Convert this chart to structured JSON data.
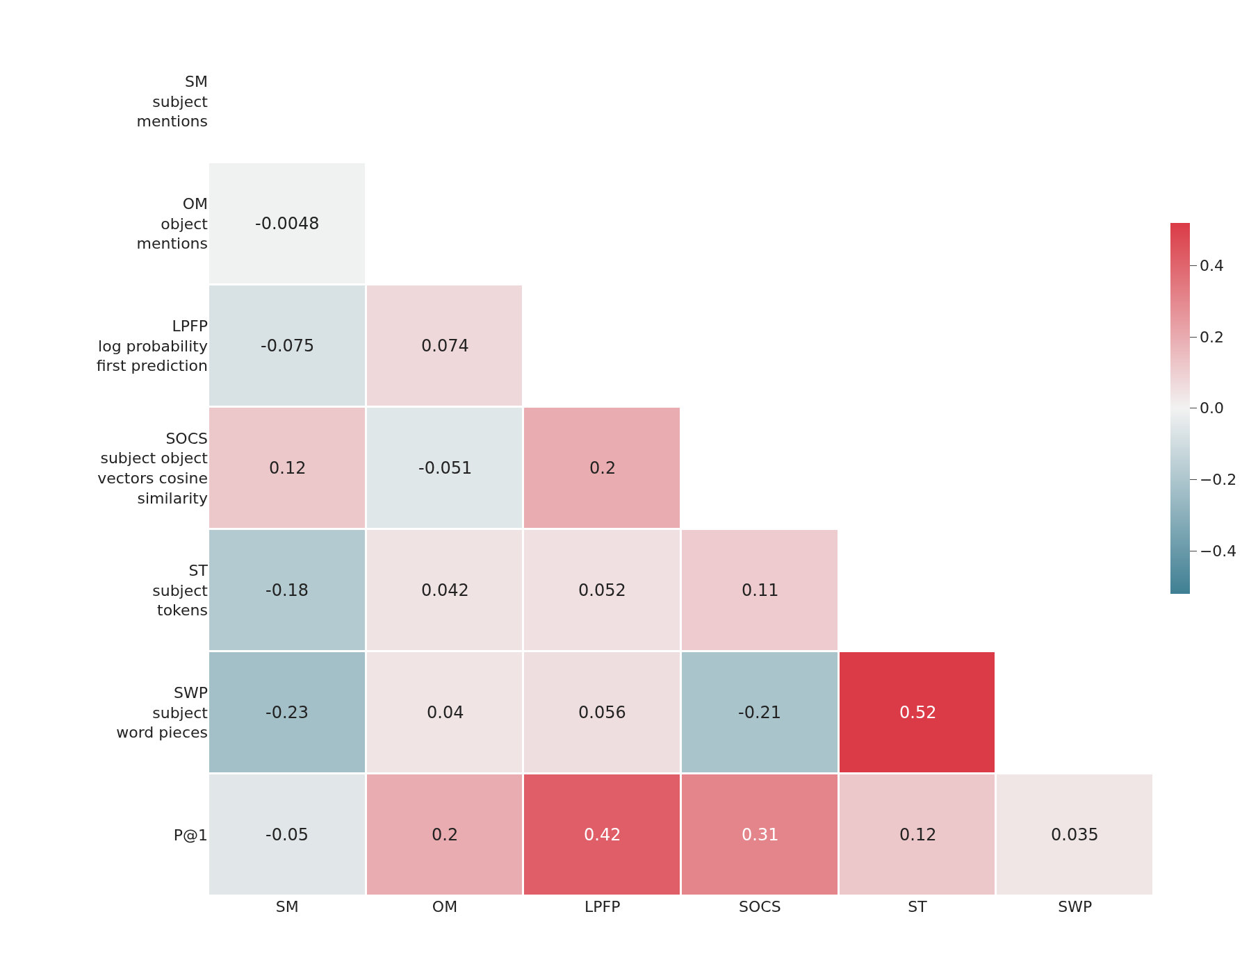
{
  "chart_data": {
    "type": "heatmap",
    "categories": [
      "SM",
      "OM",
      "LPFP",
      "SOCS",
      "ST",
      "SWP"
    ],
    "y_categories": [
      "SM\nsubject\nmentions",
      "OM\nobject\nmentions",
      "LPFP\nlog probability\nfirst prediction",
      "SOCS\nsubject object\nvectors cosine\nsimilarity",
      "ST\nsubject\ntokens",
      "SWP\nsubject\nword pieces",
      "P@1"
    ],
    "cells": [
      [
        null,
        null,
        null,
        null,
        null,
        null
      ],
      [
        -0.0048,
        null,
        null,
        null,
        null,
        null
      ],
      [
        -0.075,
        0.074,
        null,
        null,
        null,
        null
      ],
      [
        0.12,
        -0.051,
        0.2,
        null,
        null,
        null
      ],
      [
        -0.18,
        0.042,
        0.052,
        0.11,
        null,
        null
      ],
      [
        -0.23,
        0.04,
        0.056,
        -0.21,
        0.52,
        null
      ],
      [
        -0.05,
        0.2,
        0.42,
        0.31,
        0.12,
        0.035
      ]
    ],
    "data_labels": true,
    "clim": [
      -0.52,
      0.52
    ],
    "cticks": [
      {
        "value": -0.4,
        "label": "−0.4"
      },
      {
        "value": -0.2,
        "label": "−0.2"
      },
      {
        "value": 0,
        "label": "0.0"
      },
      {
        "value": 0.2,
        "label": "0.2"
      },
      {
        "value": 0.4,
        "label": "0.4"
      }
    ]
  }
}
